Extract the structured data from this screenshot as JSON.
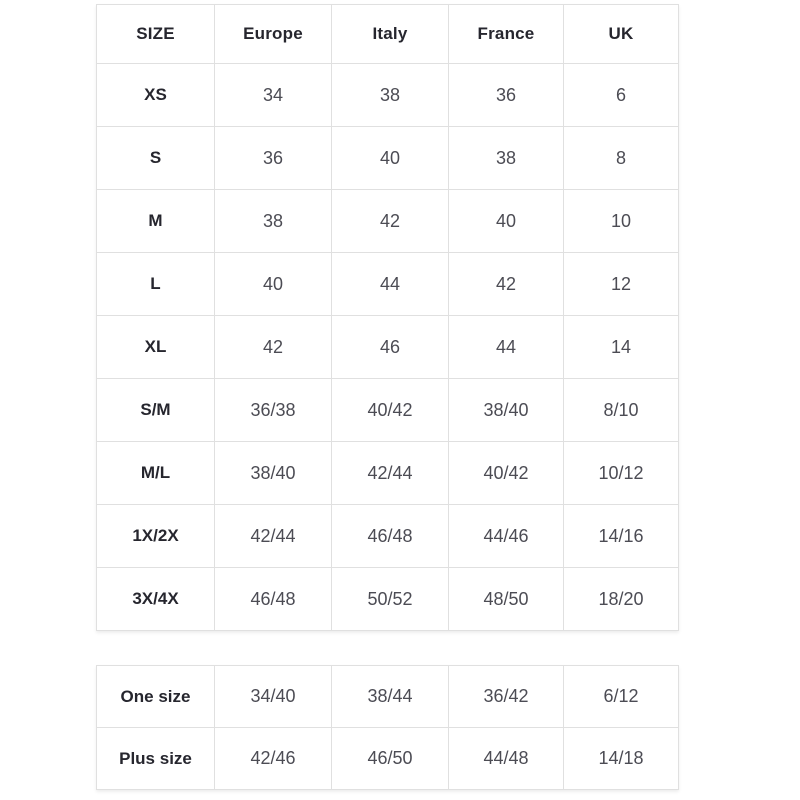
{
  "colors": {
    "background": "#ffffff",
    "border": "#e0e0e0",
    "header_text": "#26262e",
    "value_text": "#4c4c54"
  },
  "size_chart": {
    "columns": [
      "SIZE",
      "Europe",
      "Italy",
      "France",
      "UK"
    ],
    "rows": [
      {
        "size": "XS",
        "values": [
          "34",
          "38",
          "36",
          "6"
        ]
      },
      {
        "size": "S",
        "values": [
          "36",
          "40",
          "38",
          "8"
        ]
      },
      {
        "size": "M",
        "values": [
          "38",
          "42",
          "40",
          "10"
        ]
      },
      {
        "size": "L",
        "values": [
          "40",
          "44",
          "42",
          "12"
        ]
      },
      {
        "size": "XL",
        "values": [
          "42",
          "46",
          "44",
          "14"
        ]
      },
      {
        "size": "S/M",
        "values": [
          "36/38",
          "40/42",
          "38/40",
          "8/10"
        ]
      },
      {
        "size": "M/L",
        "values": [
          "38/40",
          "42/44",
          "40/42",
          "10/12"
        ]
      },
      {
        "size": "1X/2X",
        "values": [
          "42/44",
          "46/48",
          "44/46",
          "14/16"
        ]
      },
      {
        "size": "3X/4X",
        "values": [
          "46/48",
          "50/52",
          "48/50",
          "18/20"
        ]
      }
    ]
  },
  "special_sizes": {
    "rows": [
      {
        "size": "One size",
        "values": [
          "34/40",
          "38/44",
          "36/42",
          "6/12"
        ]
      },
      {
        "size": "Plus size",
        "values": [
          "42/46",
          "46/50",
          "44/48",
          "14/18"
        ]
      }
    ]
  }
}
